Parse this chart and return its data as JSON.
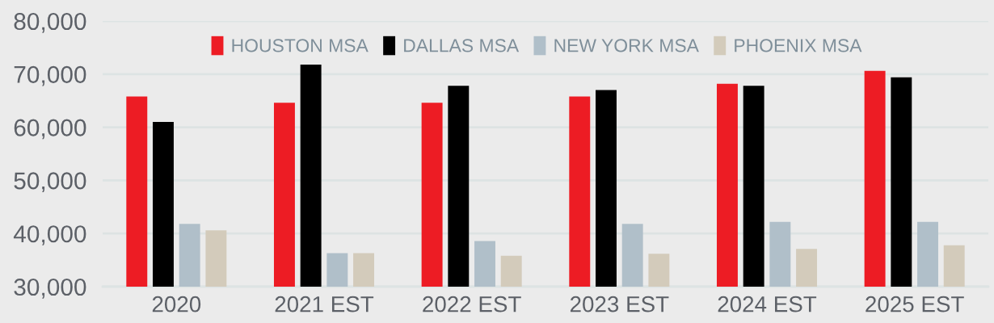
{
  "chart_data": {
    "type": "bar",
    "categories": [
      "2020",
      "2021 EST",
      "2022 EST",
      "2023 EST",
      "2024 EST",
      "2025 EST"
    ],
    "series": [
      {
        "name": "HOUSTON MSA",
        "color": "#ed1c24",
        "values": [
          65800,
          64600,
          64600,
          65800,
          68200,
          70600
        ]
      },
      {
        "name": "DALLAS MSA",
        "color": "#000000",
        "values": [
          61000,
          71800,
          67800,
          67000,
          67800,
          69400
        ]
      },
      {
        "name": "NEW YORK MSA",
        "color": "#b0bfc9",
        "values": [
          41800,
          36300,
          38600,
          41800,
          42200,
          42200
        ]
      },
      {
        "name": "PHOENIX MSA",
        "color": "#d3cbbb",
        "values": [
          40600,
          36300,
          35800,
          36200,
          37100,
          37800
        ]
      }
    ],
    "ylim": [
      30000,
      80000
    ],
    "yticks": [
      {
        "value": 30000,
        "label": "30,000"
      },
      {
        "value": 40000,
        "label": "40,000"
      },
      {
        "value": 50000,
        "label": "50,000"
      },
      {
        "value": 60000,
        "label": "60,000"
      },
      {
        "value": 70000,
        "label": "70,000"
      },
      {
        "value": 80000,
        "label": "80,000"
      }
    ],
    "grid": "y",
    "legend": "top"
  }
}
